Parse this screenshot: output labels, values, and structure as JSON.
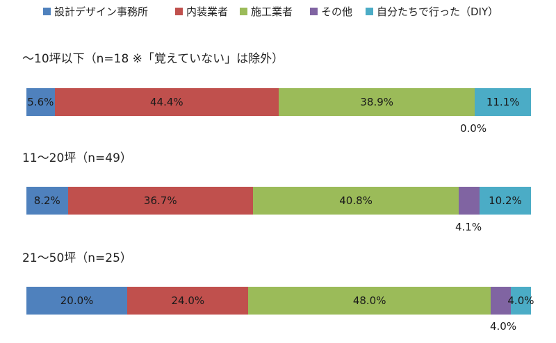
{
  "chart_data": {
    "type": "bar",
    "orientation": "horizontal",
    "stacked": "100%",
    "legend_placement": "top",
    "series": [
      {
        "name": "設計デザイン事務所",
        "color": "#4f81bd"
      },
      {
        "name": "内装業者",
        "color": "#c0504d"
      },
      {
        "name": "施工業者",
        "color": "#9bbb59"
      },
      {
        "name": "その他",
        "color": "#8064a2"
      },
      {
        "name": "自分たちで行った（DIY）",
        "color": "#4bacc6"
      }
    ],
    "groups": [
      {
        "label": "～10坪以下（n=18 ※「覚えていない」は除外）",
        "values": [
          5.6,
          44.4,
          38.9,
          0.0,
          11.1
        ],
        "value_labels": [
          "5.6%",
          "44.4%",
          "38.9%",
          "0.0%",
          "11.1%"
        ]
      },
      {
        "label": "11～20坪（n=49）",
        "values": [
          8.2,
          36.7,
          40.8,
          4.1,
          10.2
        ],
        "value_labels": [
          "8.2%",
          "36.7%",
          "40.8%",
          "4.1%",
          "10.2%"
        ]
      },
      {
        "label": "21～50坪（n=25）",
        "values": [
          20.0,
          24.0,
          48.0,
          4.0,
          4.0
        ],
        "value_labels": [
          "20.0%",
          "24.0%",
          "48.0%",
          "4.0%",
          "4.0%"
        ]
      }
    ]
  }
}
